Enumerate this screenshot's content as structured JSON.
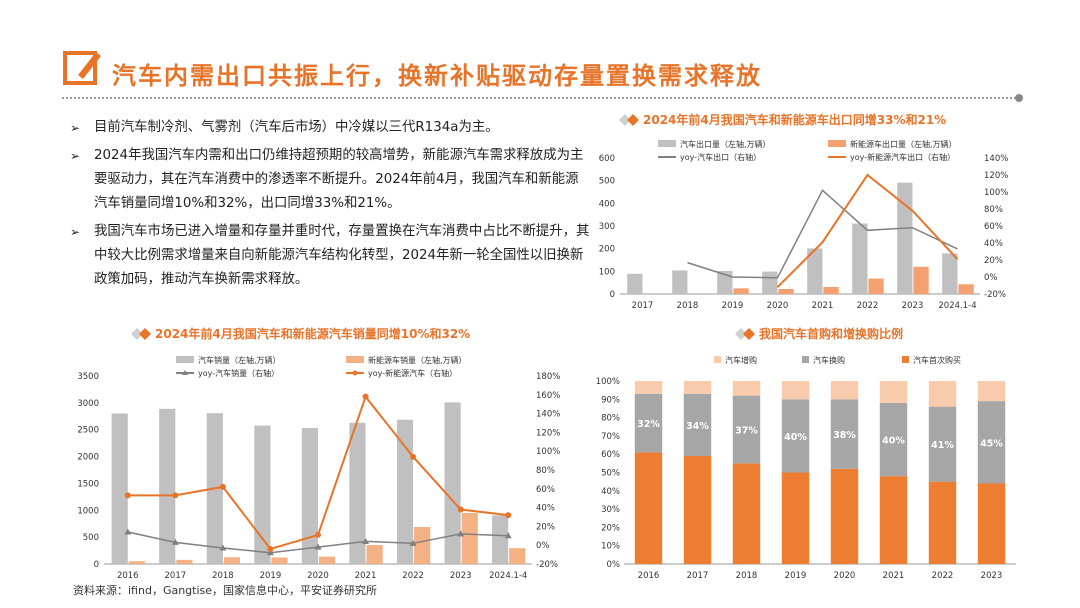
{
  "header": {
    "title": "汽车内需出口共振上行，换新补贴驱动存量置换需求释放",
    "logo_icon": "pencil-square-icon",
    "accent_color": "#e8742a"
  },
  "bullets": [
    "目前汽车制冷剂、气雾剂（汽车后市场）中冷媒以三代R134a为主。",
    "2024年我国汽车内需和出口仍维持超预期的较高增势，新能源汽车需求释放成为主要驱动力，其在汽车消费中的渗透率不断提升。2024年前4月，我国汽车和新能源汽车销量同增10%和32%，出口同增33%和21%。",
    "我国汽车市场已进入增量和存量并重时代，存量置换在汽车消费中占比不断提升，其中较大比例需求增量来自向新能源汽车结构化转型，2024年新一轮全国性以旧换新政策加码，推动汽车换新需求释放。"
  ],
  "bullet_marker": "➢",
  "source": "资料来源：ifind，Gangtise，国家信息中心，平安证券研究所",
  "chart_data": [
    {
      "id": "export",
      "type": "bar",
      "title": "2024年前4月我国汽车和新能源车出口同增33%和21%",
      "categories": [
        "2017",
        "2018",
        "2019",
        "2020",
        "2021",
        "2022",
        "2023",
        "2024.1-4"
      ],
      "series": [
        {
          "name": "汽车出口量（左轴,万辆）",
          "kind": "bar",
          "axis": "left",
          "color": "#c0c0c0",
          "values": [
            89,
            104,
            102,
            99,
            201,
            311,
            491,
            179
          ]
        },
        {
          "name": "新能源车出口量（左轴,万辆）",
          "kind": "bar",
          "axis": "left",
          "color": "#f4a070",
          "values": [
            null,
            null,
            25,
            22,
            31,
            68,
            120,
            43
          ]
        },
        {
          "name": "yoy-汽车出口（右轴）",
          "kind": "line",
          "axis": "right",
          "color": "#808080",
          "values": [
            null,
            17,
            0,
            -1,
            102,
            55,
            58,
            33
          ]
        },
        {
          "name": "yoy-新能源汽车出口（右轴）",
          "kind": "line",
          "axis": "right",
          "color": "#e8742a",
          "values": [
            null,
            null,
            null,
            -12,
            41,
            120,
            78,
            21
          ]
        }
      ],
      "yticks": [
        "0",
        "100",
        "200",
        "300",
        "400",
        "500",
        "600"
      ],
      "y2ticks": [
        "-20%",
        "0%",
        "20%",
        "40%",
        "60%",
        "80%",
        "100%",
        "120%",
        "140%"
      ],
      "ylim": [
        0,
        600
      ],
      "y2lim": [
        -20,
        140
      ],
      "grid": false,
      "legend": "top"
    },
    {
      "id": "sales",
      "type": "bar",
      "title": "2024年前4月我国汽车和新能源汽车销量同增10%和32%",
      "categories": [
        "2016",
        "2017",
        "2018",
        "2019",
        "2020",
        "2021",
        "2022",
        "2023",
        "2024.1-4"
      ],
      "series": [
        {
          "name": "汽车销量（左轴,万辆）",
          "kind": "bar",
          "axis": "left",
          "color": "#c0c0c0",
          "values": [
            2803,
            2888,
            2808,
            2577,
            2531,
            2628,
            2686,
            3009,
            905
          ]
        },
        {
          "name": "新能源车销量（左轴,万辆）",
          "kind": "bar",
          "axis": "left",
          "color": "#f4b183",
          "values": [
            51,
            77,
            126,
            121,
            137,
            352,
            689,
            950,
            294
          ]
        },
        {
          "name": "yoy-汽车销量（右轴）",
          "kind": "marker-line",
          "axis": "right",
          "color": "#808080",
          "values": [
            14,
            3,
            -3,
            -8,
            -2,
            4,
            2,
            12,
            10
          ]
        },
        {
          "name": "yoy-新能源汽车（右轴）",
          "kind": "marker-line",
          "axis": "right",
          "color": "#e8742a",
          "values": [
            53,
            53,
            62,
            -4,
            11,
            158,
            94,
            38,
            32
          ]
        }
      ],
      "yticks": [
        "0",
        "500",
        "1000",
        "1500",
        "2000",
        "2500",
        "3000",
        "3500"
      ],
      "y2ticks": [
        "-20%",
        "0%",
        "20%",
        "40%",
        "60%",
        "80%",
        "100%",
        "120%",
        "140%",
        "160%",
        "180%"
      ],
      "ylim": [
        0,
        3500
      ],
      "y2lim": [
        -20,
        180
      ],
      "grid": false,
      "legend": "top"
    },
    {
      "id": "share",
      "type": "stacked-bar",
      "title": "我国汽车首购和增换购比例",
      "categories": [
        "2016",
        "2017",
        "2018",
        "2019",
        "2020",
        "2021",
        "2022",
        "2023"
      ],
      "series": [
        {
          "name": "汽车首次购买",
          "color": "#ed7d31",
          "values": [
            61,
            59,
            55,
            50,
            52,
            48,
            45,
            44
          ]
        },
        {
          "name": "汽车换购",
          "color": "#a6a6a6",
          "values": [
            32,
            34,
            37,
            40,
            38,
            40,
            41,
            45
          ],
          "labels": [
            "32%",
            "34%",
            "37%",
            "40%",
            "38%",
            "40%",
            "41%",
            "45%"
          ]
        },
        {
          "name": "汽车增购",
          "color": "#f8cbad",
          "values": [
            7,
            7,
            8,
            10,
            10,
            12,
            14,
            11
          ]
        }
      ],
      "legend_order": [
        "汽车增购",
        "汽车换购",
        "汽车首次购买"
      ],
      "yticks": [
        "0%",
        "10%",
        "20%",
        "30%",
        "40%",
        "50%",
        "60%",
        "70%",
        "80%",
        "90%",
        "100%"
      ],
      "ylim": [
        0,
        100
      ],
      "grid": false,
      "legend": "top"
    }
  ]
}
